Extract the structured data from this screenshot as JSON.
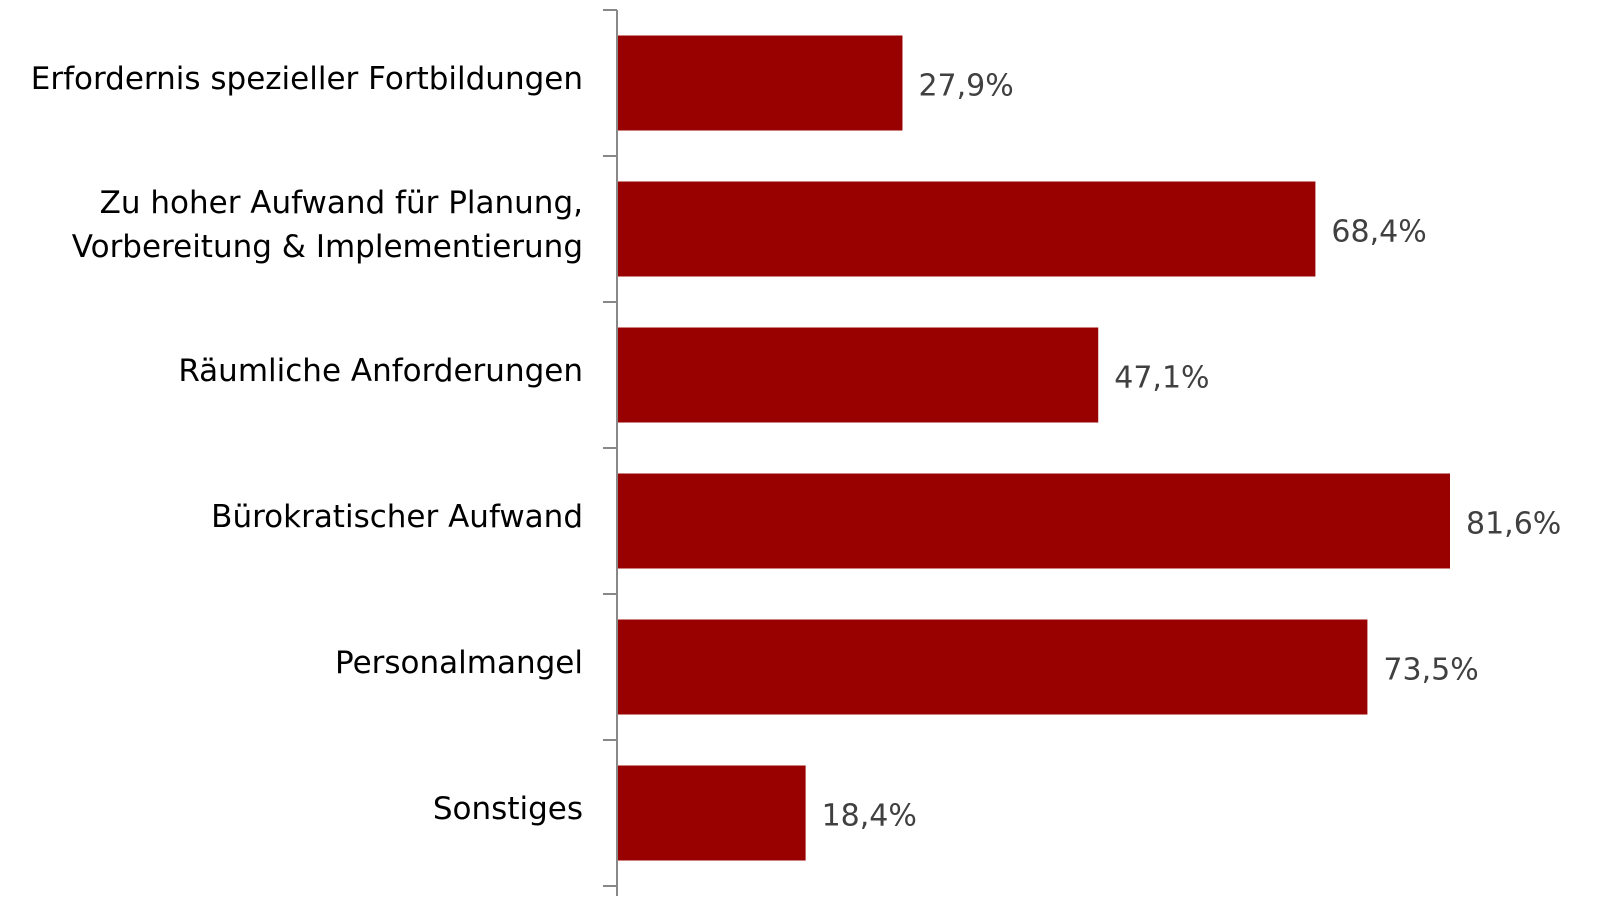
{
  "chart_data": {
    "type": "bar",
    "orientation": "horizontal",
    "categories": [
      "Erfordernis spezieller Fortbildungen",
      "Zu hoher Aufwand für Planung,\nVorbereitung & Implementierung",
      "Räumliche Anforderungen",
      "Bürokratischer Aufwand",
      "Personalmangel",
      "Sonstiges"
    ],
    "values": [
      27.9,
      68.4,
      47.1,
      81.6,
      73.5,
      18.4
    ],
    "value_labels": [
      "27,9%",
      "68,4%",
      "47,1%",
      "81,6%",
      "73,5%",
      "18,4%"
    ],
    "color": "#990000"
  }
}
